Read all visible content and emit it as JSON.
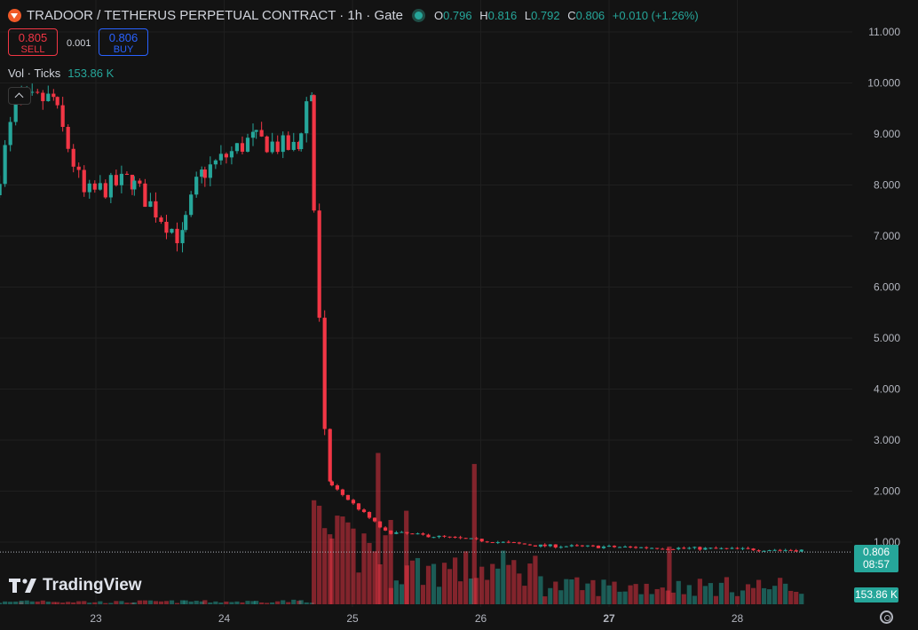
{
  "header": {
    "title": "TRADOOR / TETHERUS PERPETUAL CONTRACT · 1h · Gate",
    "ohlc": [
      {
        "k": "O",
        "v": "0.796"
      },
      {
        "k": "H",
        "v": "0.816"
      },
      {
        "k": "L",
        "v": "0.792"
      },
      {
        "k": "C",
        "v": "0.806"
      }
    ],
    "change": "+0.010 (+1.26%)"
  },
  "trade": {
    "sell_price": "0.805",
    "sell_label": "SELL",
    "spread": "0.001",
    "buy_price": "0.806",
    "buy_label": "BUY"
  },
  "volume_legend": {
    "label": "Vol · Ticks",
    "value": "153.86 K"
  },
  "price_label": {
    "price": "0.806",
    "countdown": "08:57"
  },
  "volume_label": "153.86 K",
  "brand": "TradingView",
  "colors": {
    "up": "#26a69a",
    "down": "#f23645",
    "background": "#131313"
  },
  "icons": [
    "tradoor-logo-icon",
    "market-status-dot-icon",
    "collapse-chevron-icon",
    "tradingview-logo-icon",
    "settings-gear-icon"
  ],
  "chart_data": {
    "type": "candlestick",
    "timeframe": "1h",
    "y_ticks": [
      "11.000",
      "10.000",
      "9.000",
      "8.000",
      "7.000",
      "6.000",
      "5.000",
      "4.000",
      "3.000",
      "2.000",
      "1.000"
    ],
    "x_ticks": [
      {
        "label": "23",
        "day": 23
      },
      {
        "label": "24",
        "day": 24
      },
      {
        "label": "25",
        "day": 25
      },
      {
        "label": "26",
        "day": 26
      },
      {
        "label": "27",
        "day": 27,
        "bold": true
      },
      {
        "label": "28",
        "day": 28
      }
    ],
    "ylim": [
      0,
      11.2
    ],
    "x_range_days": [
      22.25,
      29.45
    ],
    "segments": [
      {
        "from_day": 22.25,
        "to_day": 22.42,
        "from": 7.8,
        "to": 9.6,
        "vol": 0.05
      },
      {
        "from_day": 22.42,
        "to_day": 22.7,
        "from": 9.6,
        "to": 9.7,
        "vol": 0.08
      },
      {
        "from_day": 22.7,
        "to_day": 22.95,
        "from": 9.7,
        "to": 7.8,
        "vol": 0.06
      },
      {
        "from_day": 22.95,
        "to_day": 23.3,
        "from": 7.8,
        "to": 8.1,
        "vol": 0.05
      },
      {
        "from_day": 23.3,
        "to_day": 23.7,
        "from": 8.1,
        "to": 6.95,
        "vol": 0.06
      },
      {
        "from_day": 23.7,
        "to_day": 23.85,
        "from": 6.95,
        "to": 8.2,
        "vol": 0.07
      },
      {
        "from_day": 23.85,
        "to_day": 24.25,
        "from": 8.2,
        "to": 8.9,
        "vol": 0.06
      },
      {
        "from_day": 24.25,
        "to_day": 24.6,
        "from": 8.9,
        "to": 8.7,
        "vol": 0.07
      },
      {
        "from_day": 24.6,
        "to_day": 24.7,
        "from": 8.7,
        "to": 9.8,
        "vol": 0.08
      },
      {
        "from_day": 24.7,
        "to_day": 24.84,
        "from": 9.8,
        "to": 2.2,
        "vol": 1.6
      },
      {
        "from_day": 24.84,
        "to_day": 25.3,
        "from": 2.2,
        "to": 1.2,
        "vol": 1.3
      },
      {
        "from_day": 25.3,
        "to_day": 26.5,
        "from": 1.2,
        "to": 0.93,
        "vol": 0.8
      },
      {
        "from_day": 26.5,
        "to_day": 29.4,
        "from": 0.93,
        "to": 0.806,
        "vol": 0.4
      }
    ],
    "volume_spikes": [
      {
        "day": 25.2,
        "vol": 2.75
      },
      {
        "day": 25.95,
        "vol": 2.55
      },
      {
        "day": 25.42,
        "vol": 1.7
      },
      {
        "day": 27.47,
        "vol": 1.05
      }
    ]
  }
}
